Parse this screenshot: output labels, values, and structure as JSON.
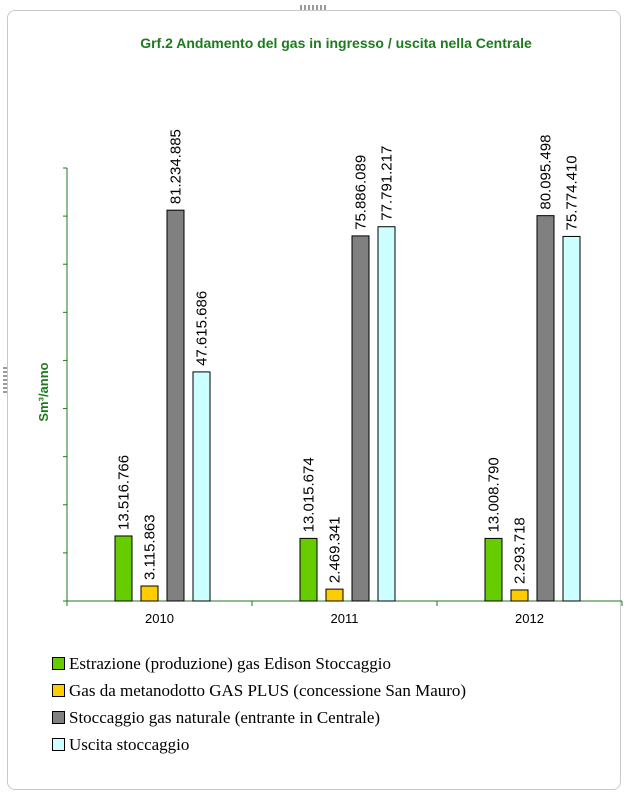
{
  "chart_data": {
    "type": "bar",
    "title": "Grf.2 Andamento del gas in ingresso / uscita nella Centrale",
    "ylabel": "Sm³/anno",
    "xlabel": "",
    "ylim": [
      0,
      90000000
    ],
    "grid": false,
    "legend_position": "bottom",
    "categories": [
      "2010",
      "2011",
      "2012"
    ],
    "series": [
      {
        "name": "Estrazione (produzione) gas Edison Stoccaggio",
        "color": "#66cc00",
        "values": [
          13516766,
          13015674,
          13008790
        ],
        "labels": [
          "13.516.766",
          "13.015.674",
          "13.008.790"
        ]
      },
      {
        "name": "Gas da metanodotto GAS PLUS (concessione San Mauro)",
        "color": "#ffcc00",
        "values": [
          3115863,
          2469341,
          2293718
        ],
        "labels": [
          "3.115.863",
          "2.469.341",
          "2.293.718"
        ]
      },
      {
        "name": "Stoccaggio gas naturale (entrante in Centrale)",
        "color": "#808080",
        "values": [
          81234885,
          75886089,
          80095498
        ],
        "labels": [
          "81.234.885",
          "75.886.089",
          "80.095.498"
        ]
      },
      {
        "name": "Uscita stoccaggio",
        "color": "#ccffff",
        "values": [
          47615686,
          77791217,
          75774410
        ],
        "labels": [
          "47.615.686",
          "77.791.217",
          "75.774.410"
        ]
      }
    ]
  }
}
